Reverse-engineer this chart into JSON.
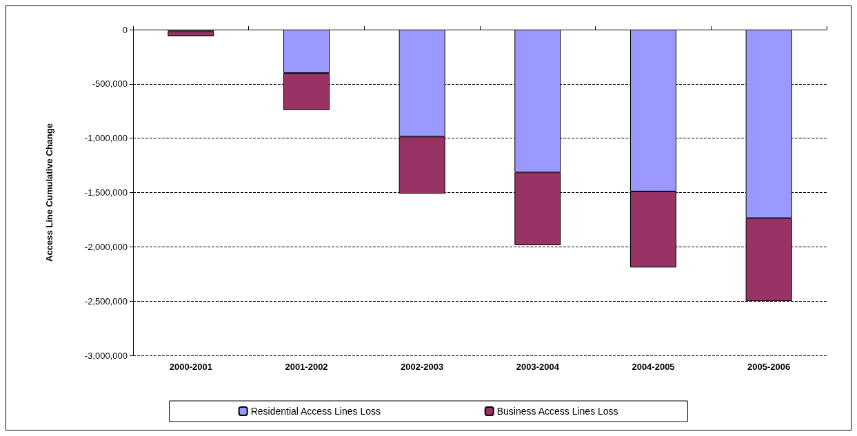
{
  "chart_data": {
    "type": "bar",
    "stacked": true,
    "ylabel": "Access Line Cumulative Change",
    "categories": [
      "2000-2001",
      "2001-2002",
      "2002-2003",
      "2003-2004",
      "2004-2005",
      "2005-2006"
    ],
    "series": [
      {
        "name": "Residential Access Lines Loss",
        "color": "#9999ff",
        "values": [
          -15000,
          -400000,
          -985000,
          -1315000,
          -1490000,
          -1735000
        ]
      },
      {
        "name": "Business Access Lines Loss",
        "color": "#993366",
        "values": [
          -45000,
          -340000,
          -525000,
          -670000,
          -700000,
          -765000
        ]
      }
    ],
    "ylim": [
      -3000000,
      0
    ],
    "yticks": [
      {
        "value": -3000000,
        "label": "-3,000,000"
      },
      {
        "value": -2500000,
        "label": "-2,500,000"
      },
      {
        "value": -2000000,
        "label": "-2,000,000"
      },
      {
        "value": -1500000,
        "label": "-1,500,000"
      },
      {
        "value": -1000000,
        "label": "-1,000,000"
      },
      {
        "value": -500000,
        "label": "-500,000"
      },
      0
    ],
    "grid": "y",
    "legend": "bottom"
  }
}
